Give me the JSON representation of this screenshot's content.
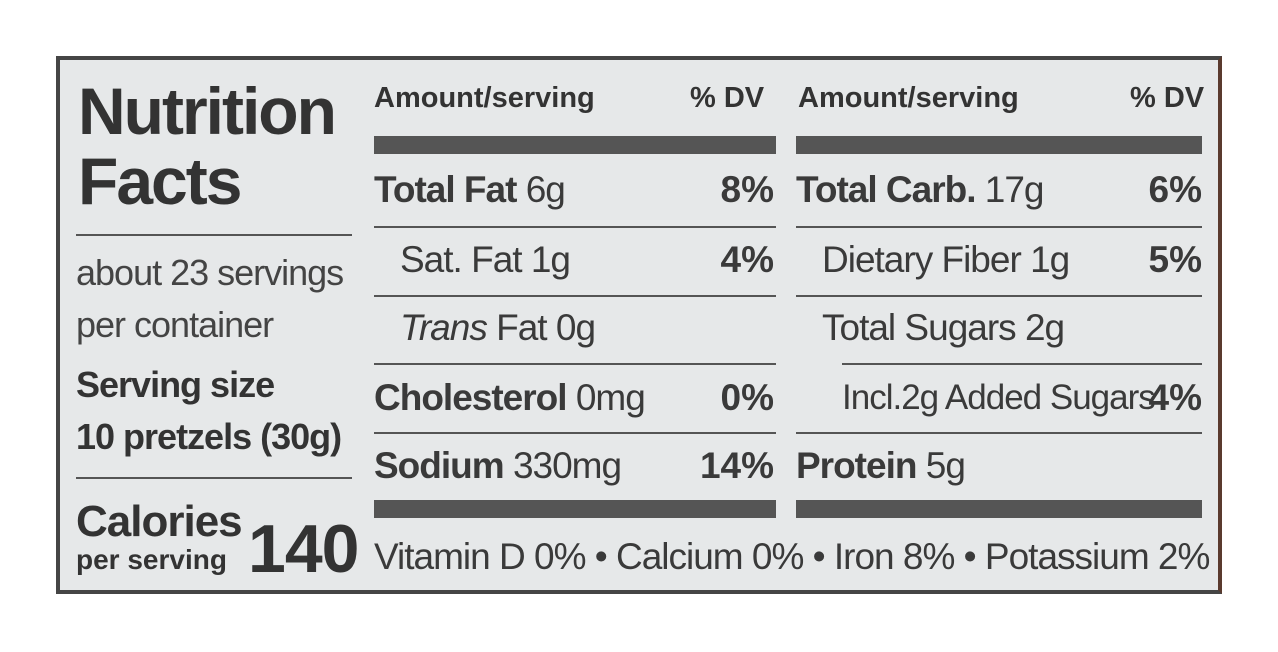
{
  "title": [
    "Nutrition",
    "Facts"
  ],
  "servings": [
    "about 23 servings",
    "per container"
  ],
  "serving_size": [
    "Serving size",
    "10 pretzels (30g)"
  ],
  "calories": {
    "label": "Calories",
    "sub": "per serving",
    "value": "140"
  },
  "header": {
    "amount": "Amount/serving",
    "dv": "% DV"
  },
  "left_rows": [
    {
      "name": "Total Fat",
      "amount": "6g",
      "dv": "8%"
    },
    {
      "name": "Sat. Fat",
      "amount": "1g",
      "dv": "4%"
    },
    {
      "name": "Trans",
      "amount": "Fat 0g",
      "dv": ""
    },
    {
      "name": "Cholesterol",
      "amount": "0mg",
      "dv": "0%"
    },
    {
      "name": "Sodium",
      "amount": "330mg",
      "dv": "14%"
    }
  ],
  "right_rows": [
    {
      "name": "Total Carb.",
      "amount": "17g",
      "dv": "6%"
    },
    {
      "name": "Dietary Fiber",
      "amount": "1g",
      "dv": "5%"
    },
    {
      "name": "Total Sugars",
      "amount": "2g",
      "dv": ""
    },
    {
      "name": "Incl.",
      "amount": "2g Added Sugars",
      "dv": "4%"
    },
    {
      "name": "Protein",
      "amount": "5g",
      "dv": ""
    }
  ],
  "vitamins": "Vitamin D 0% • Calcium 0% • Iron 8% • Potassium 2%"
}
